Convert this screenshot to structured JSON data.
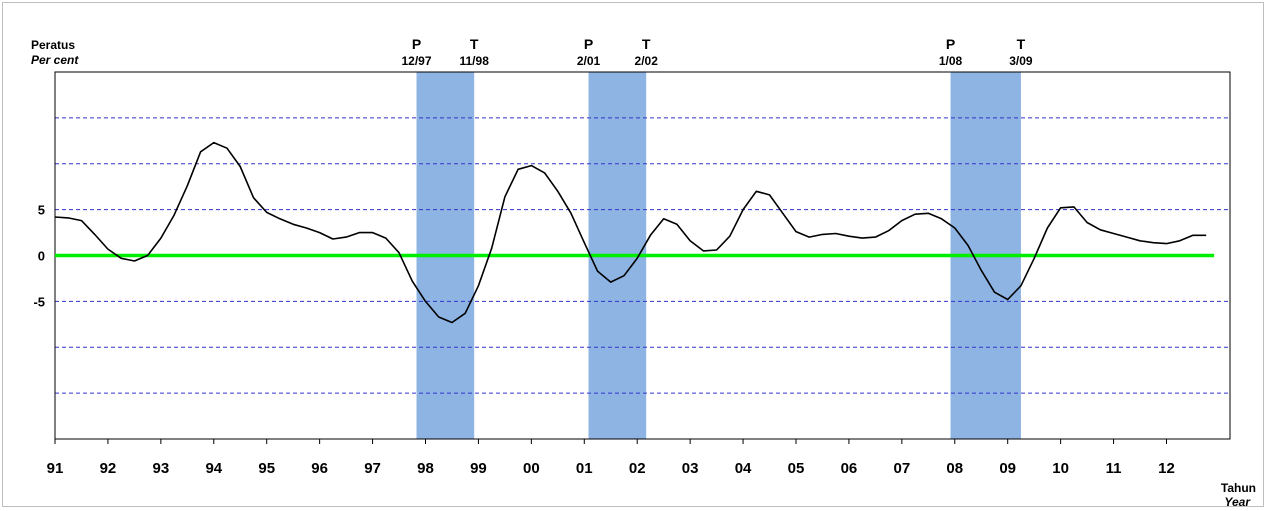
{
  "chart_data": {
    "type": "line",
    "ylabel": "Peratus",
    "ylabel_en": "Per cent",
    "xlabel": "Tahun",
    "xlabel_en": "Year",
    "x_range": [
      1991.0,
      2013.2
    ],
    "ylim": [
      -20,
      20
    ],
    "y_ticks": [
      {
        "value": 5,
        "label": "5"
      },
      {
        "value": 0,
        "label": "0"
      },
      {
        "value": -5,
        "label": "-5"
      }
    ],
    "y_gridlines": [
      20,
      15,
      10,
      5,
      -5,
      -10,
      -15
    ],
    "x_ticks": [
      {
        "value": 1991,
        "label": "91"
      },
      {
        "value": 1992,
        "label": "92"
      },
      {
        "value": 1993,
        "label": "93"
      },
      {
        "value": 1994,
        "label": "94"
      },
      {
        "value": 1995,
        "label": "95"
      },
      {
        "value": 1996,
        "label": "96"
      },
      {
        "value": 1997,
        "label": "97"
      },
      {
        "value": 1998,
        "label": "98"
      },
      {
        "value": 1999,
        "label": "99"
      },
      {
        "value": 2000,
        "label": "00"
      },
      {
        "value": 2001,
        "label": "01"
      },
      {
        "value": 2002,
        "label": "02"
      },
      {
        "value": 2003,
        "label": "03"
      },
      {
        "value": 2004,
        "label": "04"
      },
      {
        "value": 2005,
        "label": "05"
      },
      {
        "value": 2006,
        "label": "06"
      },
      {
        "value": 2007,
        "label": "07"
      },
      {
        "value": 2008,
        "label": "08"
      },
      {
        "value": 2009,
        "label": "09"
      },
      {
        "value": 2010,
        "label": "10"
      },
      {
        "value": 2011,
        "label": "11"
      },
      {
        "value": 2012,
        "label": "12"
      }
    ],
    "recessions": [
      {
        "start": 1997.83,
        "end": 1998.92,
        "peak_letter": "P",
        "peak_date": "12/97",
        "trough_letter": "T",
        "trough_date": "11/98"
      },
      {
        "start": 2001.08,
        "end": 2002.17,
        "peak_letter": "P",
        "peak_date": "2/01",
        "trough_letter": "T",
        "trough_date": "2/02"
      },
      {
        "start": 2007.92,
        "end": 2009.25,
        "peak_letter": "P",
        "peak_date": "1/08",
        "trough_letter": "T",
        "trough_date": "3/09"
      }
    ],
    "series": [
      {
        "color": "#000000",
        "points": [
          [
            1991.0,
            4.2
          ],
          [
            1991.25,
            4.1
          ],
          [
            1991.5,
            3.8
          ],
          [
            1991.75,
            2.3
          ],
          [
            1992.0,
            0.7
          ],
          [
            1992.25,
            -0.3
          ],
          [
            1992.5,
            -0.6
          ],
          [
            1992.75,
            0.0
          ],
          [
            1993.0,
            1.9
          ],
          [
            1993.25,
            4.4
          ],
          [
            1993.5,
            7.6
          ],
          [
            1993.75,
            11.3
          ],
          [
            1994.0,
            12.3
          ],
          [
            1994.25,
            11.7
          ],
          [
            1994.5,
            9.7
          ],
          [
            1994.75,
            6.3
          ],
          [
            1995.0,
            4.7
          ],
          [
            1995.25,
            4.0
          ],
          [
            1995.5,
            3.4
          ],
          [
            1995.75,
            3.0
          ],
          [
            1996.0,
            2.5
          ],
          [
            1996.25,
            1.8
          ],
          [
            1996.5,
            2.0
          ],
          [
            1996.75,
            2.5
          ],
          [
            1997.0,
            2.5
          ],
          [
            1997.25,
            1.9
          ],
          [
            1997.5,
            0.3
          ],
          [
            1997.75,
            -2.8
          ],
          [
            1998.0,
            -5.0
          ],
          [
            1998.25,
            -6.7
          ],
          [
            1998.5,
            -7.3
          ],
          [
            1998.75,
            -6.3
          ],
          [
            1999.0,
            -3.3
          ],
          [
            1999.25,
            0.8
          ],
          [
            1999.5,
            6.4
          ],
          [
            1999.75,
            9.4
          ],
          [
            2000.0,
            9.8
          ],
          [
            2000.25,
            9.0
          ],
          [
            2000.5,
            7.0
          ],
          [
            2000.75,
            4.6
          ],
          [
            2001.0,
            1.4
          ],
          [
            2001.25,
            -1.7
          ],
          [
            2001.5,
            -2.9
          ],
          [
            2001.75,
            -2.2
          ],
          [
            2002.0,
            -0.3
          ],
          [
            2002.25,
            2.2
          ],
          [
            2002.5,
            4.0
          ],
          [
            2002.75,
            3.4
          ],
          [
            2003.0,
            1.6
          ],
          [
            2003.25,
            0.5
          ],
          [
            2003.5,
            0.6
          ],
          [
            2003.75,
            2.1
          ],
          [
            2004.0,
            5.0
          ],
          [
            2004.25,
            7.0
          ],
          [
            2004.5,
            6.6
          ],
          [
            2004.75,
            4.6
          ],
          [
            2005.0,
            2.6
          ],
          [
            2005.25,
            2.0
          ],
          [
            2005.5,
            2.3
          ],
          [
            2005.75,
            2.4
          ],
          [
            2006.0,
            2.1
          ],
          [
            2006.25,
            1.9
          ],
          [
            2006.5,
            2.0
          ],
          [
            2006.75,
            2.7
          ],
          [
            2007.0,
            3.8
          ],
          [
            2007.25,
            4.5
          ],
          [
            2007.5,
            4.6
          ],
          [
            2007.75,
            4.0
          ],
          [
            2008.0,
            3.0
          ],
          [
            2008.25,
            1.1
          ],
          [
            2008.5,
            -1.6
          ],
          [
            2008.75,
            -4.0
          ],
          [
            2009.0,
            -4.8
          ],
          [
            2009.25,
            -3.3
          ],
          [
            2009.5,
            -0.3
          ],
          [
            2009.75,
            3.0
          ],
          [
            2010.0,
            5.2
          ],
          [
            2010.25,
            5.3
          ],
          [
            2010.5,
            3.6
          ],
          [
            2010.75,
            2.8
          ],
          [
            2011.0,
            2.4
          ],
          [
            2011.25,
            2.0
          ],
          [
            2011.5,
            1.6
          ],
          [
            2011.75,
            1.4
          ],
          [
            2012.0,
            1.3
          ],
          [
            2012.25,
            1.6
          ],
          [
            2012.5,
            2.2
          ],
          [
            2012.75,
            2.2
          ]
        ]
      }
    ],
    "zero_line": {
      "value": 0,
      "color": "#00ee00"
    },
    "band_color": "#8eb4e3",
    "grid_color": "#3333cc",
    "grid": true
  }
}
